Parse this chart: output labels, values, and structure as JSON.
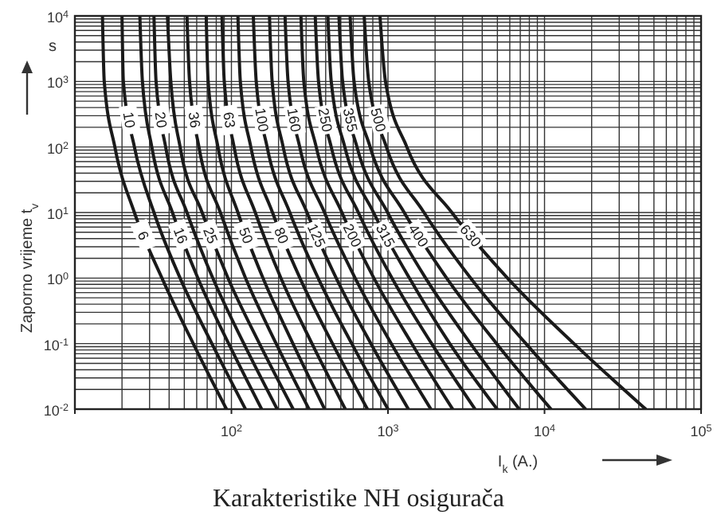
{
  "chart_data": {
    "type": "line",
    "title": "Karakteristike NH osigurača",
    "xlabel": "I$_{k}$ (A.)",
    "ylabel": "Zaporno vrijeme t$_{v}$",
    "annotations": [
      "s"
    ],
    "log": "xy",
    "grid": true,
    "marker": "none",
    "line_style": "solid",
    "xlim": [
      10,
      100000
    ],
    "ylim": [
      0.01,
      10000
    ],
    "xticks": [
      {
        "value": 10,
        "label": null
      },
      {
        "value": 100,
        "label": "10$^{2}$"
      },
      {
        "value": 1000,
        "label": "10$^{3}$"
      },
      {
        "value": 10000,
        "label": "10$^{4}$"
      },
      {
        "value": 100000,
        "label": "10$^{5}$"
      }
    ],
    "yticks": [
      {
        "value": 0.01,
        "label": "10$^{-2}$"
      },
      {
        "value": 0.1,
        "label": "10$^{-1}$"
      },
      {
        "value": 1,
        "label": "10$^{0}$"
      },
      {
        "value": 10,
        "label": "10$^{1}$"
      },
      {
        "value": 100,
        "label": "10$^{2}$"
      },
      {
        "value": 1000,
        "label": "10$^{3}$"
      },
      {
        "value": 10000,
        "label": "10$^{4}$"
      }
    ],
    "series": [
      {
        "name": "6",
        "color": "#1a1a1a",
        "x": [
          15,
          15.4,
          18,
          24,
          36,
          57,
          93
        ],
        "values": [
          10000,
          1000,
          100,
          10,
          1,
          0.1,
          0.01
        ]
      },
      {
        "name": "10",
        "color": "#1a1a1a",
        "x": [
          20,
          20.4,
          24,
          32,
          47,
          75,
          123
        ],
        "values": [
          10000,
          1000,
          100,
          10,
          1,
          0.1,
          0.01
        ]
      },
      {
        "name": "16",
        "color": "#1a1a1a",
        "x": [
          26,
          27,
          31,
          42,
          61,
          96,
          156
        ],
        "values": [
          10000,
          1000,
          100,
          10,
          1,
          0.1,
          0.01
        ]
      },
      {
        "name": "20",
        "color": "#1a1a1a",
        "x": [
          32,
          33,
          38,
          52,
          76,
          120,
          196
        ],
        "values": [
          10000,
          1000,
          100,
          10,
          1,
          0.1,
          0.01
        ]
      },
      {
        "name": "25",
        "color": "#1a1a1a",
        "x": [
          39,
          41,
          47,
          65,
          95,
          151,
          248
        ],
        "values": [
          10000,
          1000,
          100,
          10,
          1,
          0.1,
          0.01
        ]
      },
      {
        "name": "36",
        "color": "#1a1a1a",
        "x": [
          52,
          54,
          62,
          85,
          123,
          193,
          313
        ],
        "values": [
          10000,
          1000,
          100,
          10,
          1,
          0.1,
          0.01
        ]
      },
      {
        "name": "50",
        "color": "#1a1a1a",
        "x": [
          69,
          71,
          82,
          110,
          159,
          247,
          394
        ],
        "values": [
          10000,
          1000,
          100,
          10,
          1,
          0.1,
          0.01
        ]
      },
      {
        "name": "63",
        "color": "#1a1a1a",
        "x": [
          87,
          90,
          104,
          142,
          207,
          327,
          534
        ],
        "values": [
          10000,
          1000,
          100,
          10,
          1,
          0.1,
          0.01
        ]
      },
      {
        "name": "80",
        "color": "#1a1a1a",
        "x": [
          110,
          114,
          133,
          183,
          274,
          442,
          739
        ],
        "values": [
          10000,
          1000,
          100,
          10,
          1,
          0.1,
          0.01
        ]
      },
      {
        "name": "100",
        "color": "#1a1a1a",
        "x": [
          138,
          144,
          169,
          236,
          358,
          587,
          1000
        ],
        "values": [
          10000,
          1000,
          100,
          10,
          1,
          0.1,
          0.01
        ]
      },
      {
        "name": "125",
        "color": "#1a1a1a",
        "x": [
          175,
          182,
          214,
          304,
          467,
          778,
          1350
        ],
        "values": [
          10000,
          1000,
          100,
          10,
          1,
          0.1,
          0.01
        ]
      },
      {
        "name": "160",
        "color": "#1a1a1a",
        "x": [
          220,
          230,
          273,
          393,
          617,
          1050,
          1880
        ],
        "values": [
          10000,
          1000,
          100,
          10,
          1,
          0.1,
          0.01
        ]
      },
      {
        "name": "200",
        "color": "#1a1a1a",
        "x": [
          278,
          290,
          348,
          508,
          813,
          1420,
          2590
        ],
        "values": [
          10000,
          1000,
          100,
          10,
          1,
          0.1,
          0.01
        ]
      },
      {
        "name": "250",
        "color": "#1a1a1a",
        "x": [
          343,
          360,
          434,
          647,
          1060,
          1900,
          3600
        ],
        "values": [
          10000,
          1000,
          100,
          10,
          1,
          0.1,
          0.01
        ]
      },
      {
        "name": "315",
        "color": "#1a1a1a",
        "x": [
          413,
          434,
          530,
          809,
          1370,
          2480,
          4980
        ],
        "values": [
          10000,
          1000,
          100,
          10,
          1,
          0.1,
          0.01
        ]
      },
      {
        "name": "355",
        "color": "#1a1a1a",
        "x": [
          486,
          513,
          634,
          995,
          1740,
          3370,
          6890
        ],
        "values": [
          10000,
          1000,
          100,
          10,
          1,
          0.1,
          0.01
        ]
      },
      {
        "name": "400",
        "color": "#1a1a1a",
        "x": [
          573,
          607,
          769,
          1270,
          2370,
          4940,
          11000
        ],
        "values": [
          10000,
          1000,
          100,
          10,
          1,
          0.1,
          0.01
        ]
      },
      {
        "name": "500",
        "color": "#1a1a1a",
        "x": [
          705,
          753,
          977,
          1700,
          3370,
          7600,
          18300
        ],
        "values": [
          10000,
          1000,
          100,
          10,
          1,
          0.1,
          0.01
        ]
      },
      {
        "name": "630",
        "color": "#1a1a1a",
        "x": [
          889,
          964,
          1320,
          2560,
          5800,
          15400,
          44300
        ],
        "values": [
          10000,
          1000,
          100,
          10,
          1,
          0.1,
          0.01
        ]
      }
    ]
  }
}
